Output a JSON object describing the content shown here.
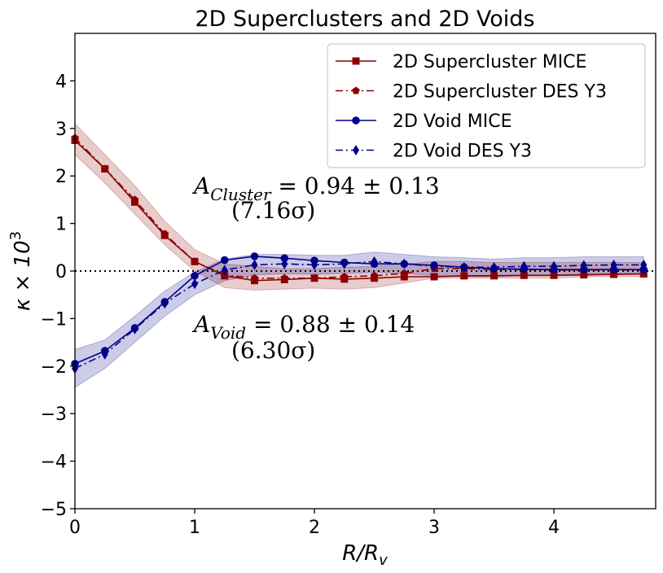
{
  "chart_data": {
    "type": "line",
    "title": "2D Superclusters and 2D Voids",
    "xlabel": "R/R_v",
    "ylabel": "κ × 10^3",
    "xlim": [
      0,
      4.85
    ],
    "ylim": [
      -5,
      5
    ],
    "xticks": [
      0,
      1,
      2,
      3,
      4
    ],
    "yticks": [
      -5,
      -4,
      -3,
      -2,
      -1,
      0,
      1,
      2,
      3,
      4
    ],
    "reference_line_y": 0,
    "legend_position": "top-right",
    "x": [
      0,
      0.25,
      0.5,
      0.75,
      1.0,
      1.25,
      1.5,
      1.75,
      2.0,
      2.25,
      2.5,
      2.75,
      3.0,
      3.25,
      3.5,
      3.75,
      4.0,
      4.25,
      4.5,
      4.75
    ],
    "series": [
      {
        "name": "2D Supercluster MICE",
        "color": "#8b0000",
        "linestyle": "solid",
        "marker": "square",
        "values": [
          2.75,
          2.15,
          1.45,
          0.75,
          0.2,
          -0.1,
          -0.2,
          -0.18,
          -0.15,
          -0.17,
          -0.15,
          -0.12,
          -0.12,
          -0.1,
          -0.1,
          -0.09,
          -0.09,
          -0.08,
          -0.07,
          -0.06
        ]
      },
      {
        "name": "2D Supercluster DES Y3",
        "color": "#8b0000",
        "linestyle": "dashdot",
        "marker": "pentagon",
        "values": [
          2.8,
          2.15,
          1.5,
          0.78,
          0.2,
          -0.08,
          -0.15,
          -0.15,
          -0.15,
          -0.12,
          -0.1,
          -0.05,
          0.05,
          0.05,
          0.03,
          0.03,
          0.02,
          0.02,
          0.02,
          0.02
        ],
        "band_low": [
          2.45,
          1.85,
          1.2,
          0.55,
          0.0,
          -0.35,
          -0.4,
          -0.38,
          -0.36,
          -0.38,
          -0.35,
          -0.25,
          -0.15,
          -0.15,
          -0.15,
          -0.15,
          -0.15,
          -0.12,
          -0.12,
          -0.12
        ],
        "band_high": [
          3.1,
          2.45,
          1.8,
          1.05,
          0.45,
          0.15,
          0.1,
          0.05,
          0.05,
          0.08,
          0.1,
          0.15,
          0.2,
          0.2,
          0.18,
          0.18,
          0.18,
          0.18,
          0.18,
          0.18
        ]
      },
      {
        "name": "2D Void MICE",
        "color": "#00008b",
        "linestyle": "solid",
        "marker": "circle",
        "values": [
          -1.95,
          -1.68,
          -1.2,
          -0.65,
          -0.1,
          0.23,
          0.31,
          0.27,
          0.22,
          0.18,
          0.15,
          0.15,
          0.12,
          0.08,
          0.05,
          0.04,
          0.03,
          0.03,
          0.03,
          0.03
        ]
      },
      {
        "name": "2D Void DES Y3",
        "color": "#00008b",
        "linestyle": "dashdot",
        "marker": "diamond",
        "values": [
          -2.05,
          -1.75,
          -1.22,
          -0.68,
          -0.27,
          0.02,
          0.13,
          0.15,
          0.13,
          0.15,
          0.2,
          0.15,
          0.1,
          0.08,
          0.08,
          0.1,
          0.1,
          0.12,
          0.13,
          0.13
        ],
        "band_low": [
          -2.45,
          -2.05,
          -1.5,
          -0.95,
          -0.5,
          -0.2,
          -0.08,
          -0.06,
          -0.07,
          -0.05,
          -0.03,
          -0.05,
          -0.1,
          -0.12,
          -0.12,
          -0.1,
          -0.08,
          -0.06,
          -0.05,
          -0.05
        ],
        "band_high": [
          -1.65,
          -1.45,
          -0.95,
          -0.42,
          -0.02,
          0.25,
          0.35,
          0.35,
          0.33,
          0.33,
          0.4,
          0.35,
          0.3,
          0.28,
          0.25,
          0.28,
          0.28,
          0.3,
          0.3,
          0.3
        ]
      }
    ],
    "annotations": [
      {
        "main": "A_Cluster = 0.94 ± 0.13",
        "sigma": "(7.16σ)"
      },
      {
        "main": "A_Void = 0.88 ± 0.14",
        "sigma": "(6.30σ)"
      }
    ]
  },
  "text": {
    "title": "2D Superclusters and 2D Voids",
    "xlabel_main": "R/R",
    "xlabel_sub": "v",
    "ylabel_main": "κ × 10",
    "ylabel_sup": "3",
    "annot_cluster_prefix": "A",
    "annot_cluster_sub": "Cluster",
    "annot_cluster_value": " = 0.94 ± 0.13",
    "annot_cluster_sigma": "(7.16σ)",
    "annot_void_prefix": "A",
    "annot_void_sub": "Void",
    "annot_void_value": " = 0.88 ± 0.14",
    "annot_void_sigma": "(6.30σ)"
  }
}
